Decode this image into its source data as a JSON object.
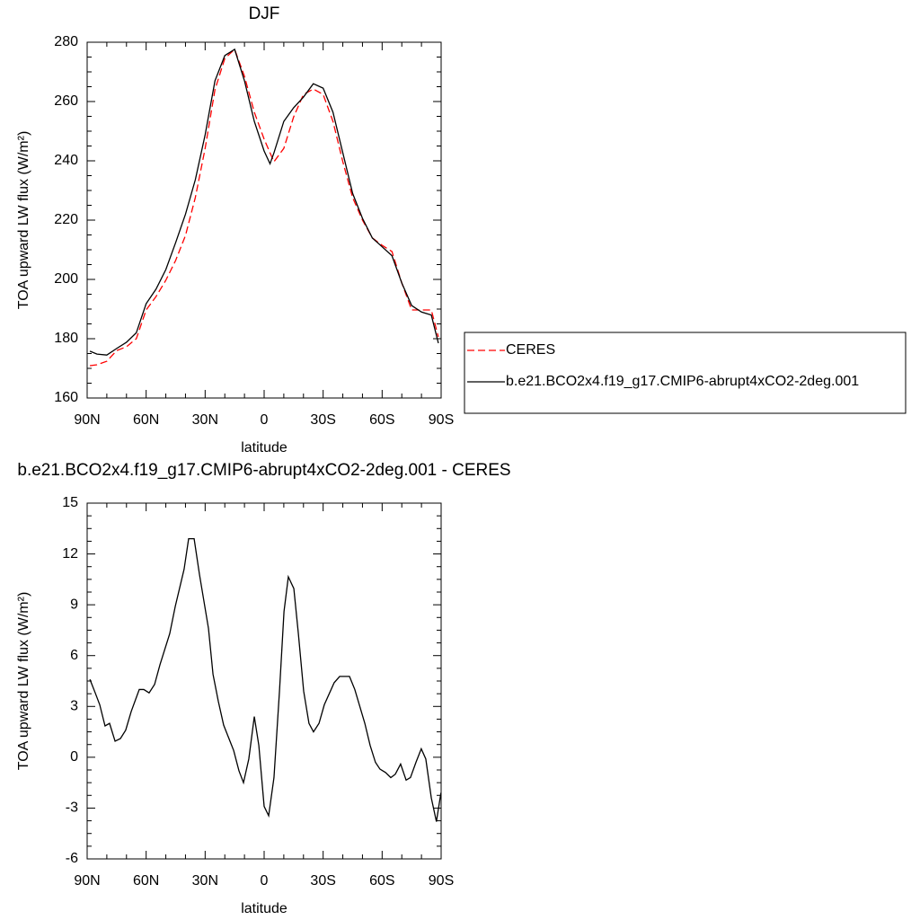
{
  "chart_data": [
    {
      "type": "line",
      "title": "DJF",
      "xlabel": "latitude",
      "ylabel": "TOA upward LW flux (W/m²)",
      "x": [
        88.6,
        85,
        80,
        75,
        70,
        65,
        60,
        55,
        50,
        45,
        40,
        35,
        30,
        25,
        20,
        15,
        10,
        5,
        0,
        -3,
        -5,
        -10,
        -15,
        -20,
        -25,
        -30,
        -35,
        -40,
        -45,
        -50,
        -55,
        -60,
        -65,
        -70,
        -75,
        -80,
        -85,
        -88.6
      ],
      "series": [
        {
          "name": "CERES",
          "color": "#ff0000",
          "dash": true,
          "values": [
            170.9,
            171.2,
            172.4,
            176,
            177.3,
            180,
            189.7,
            194.2,
            199.7,
            206.4,
            214.8,
            227.6,
            244.2,
            264,
            274.5,
            277.6,
            268.5,
            256.4,
            247.3,
            242.7,
            239.7,
            244.2,
            254.8,
            262.4,
            264.2,
            262.4,
            253.3,
            239.7,
            227.6,
            220,
            214,
            211.5,
            209.4,
            198.8,
            189.7,
            189.7,
            189.7,
            180.6
          ]
        },
        {
          "name": "b.e21.BCO2x4.f19_g17.CMIP6-abrupt4xCO2-2deg.001",
          "color": "#000000",
          "dash": false,
          "values": [
            175.8,
            174.8,
            174.5,
            176.7,
            178.8,
            182,
            191.8,
            196.7,
            203.3,
            212.4,
            222,
            233.6,
            248.8,
            267,
            275.5,
            277.6,
            267,
            253.3,
            243.3,
            239,
            242.7,
            253.3,
            257.9,
            261.5,
            266,
            264.5,
            256.4,
            242.7,
            229,
            220.6,
            214,
            211,
            208,
            198.8,
            191.2,
            189,
            188,
            178.5
          ]
        }
      ],
      "xlim": [
        90,
        -90
      ],
      "xticks": [
        {
          "value": 90,
          "label": "90N"
        },
        {
          "value": 60,
          "label": "60N"
        },
        {
          "value": 30,
          "label": "30N"
        },
        0,
        {
          "value": -30,
          "label": "30S"
        },
        {
          "value": -60,
          "label": "60S"
        },
        {
          "value": -90,
          "label": "90S"
        }
      ],
      "ylim": [
        160,
        280
      ],
      "yticks": [
        160,
        180,
        200,
        220,
        240,
        260,
        280
      ],
      "legend": "right"
    },
    {
      "type": "line",
      "title": "b.e21.BCO2x4.f19_g17.CMIP6-abrupt4xCO2-2deg.001 - CERES",
      "xlabel": "latitude",
      "ylabel": "TOA upward LW flux (W/m²)",
      "x": [
        88.6,
        85.9,
        83.6,
        80.9,
        78.6,
        75.8,
        73.1,
        70.4,
        67.6,
        63.5,
        61.2,
        58.5,
        55.7,
        53,
        48,
        45.2,
        40.7,
        38.4,
        35.6,
        32.9,
        28.3,
        26,
        23.3,
        20.6,
        15.5,
        12.8,
        10.5,
        7.8,
        5,
        2.7,
        0,
        -2.3,
        -5,
        -7.8,
        -10.1,
        -12.3,
        -15.1,
        -17.4,
        -20.1,
        -22.8,
        -25.1,
        -27.9,
        -30.6,
        -35.6,
        -38.4,
        -43.4,
        -46.1,
        -51.2,
        -53.9,
        -56.6,
        -58.9,
        -61.7,
        -64.4,
        -66.7,
        -69.4,
        -72.2,
        -74.4,
        -77.2,
        -79.9,
        -82.2,
        -85,
        -87.6,
        -89.9
      ],
      "series": [
        {
          "color": "#000000",
          "dash": false,
          "values": [
            4.6,
            3.8,
            3.1,
            1.85,
            2.0,
            0.95,
            1.1,
            1.6,
            2.7,
            4.0,
            4.0,
            3.8,
            4.3,
            5.45,
            7.3,
            8.9,
            11.1,
            12.9,
            12.9,
            10.8,
            7.6,
            4.9,
            3.3,
            1.9,
            0.4,
            -0.8,
            -1.5,
            -0.1,
            2.4,
            0.7,
            -2.9,
            -3.45,
            -1.2,
            3.9,
            8.6,
            10.65,
            9.96,
            7.3,
            3.9,
            2.0,
            1.5,
            2.0,
            3.1,
            4.4,
            4.77,
            4.77,
            4.0,
            2.0,
            0.7,
            -0.3,
            -0.7,
            -0.9,
            -1.2,
            -1.0,
            -0.4,
            -1.35,
            -1.2,
            -0.3,
            0.5,
            -0.1,
            -2.4,
            -3.8,
            -2.1
          ]
        }
      ],
      "xlim": [
        90,
        -90
      ],
      "xticks": [
        {
          "value": 90,
          "label": "90N"
        },
        {
          "value": 60,
          "label": "60N"
        },
        {
          "value": 30,
          "label": "30N"
        },
        0,
        {
          "value": -30,
          "label": "30S"
        },
        {
          "value": -60,
          "label": "60S"
        },
        {
          "value": -90,
          "label": "90S"
        }
      ],
      "ylim": [
        -6,
        15
      ],
      "yticks": [
        -6,
        -3,
        0,
        3,
        6,
        9,
        12,
        15
      ]
    }
  ]
}
